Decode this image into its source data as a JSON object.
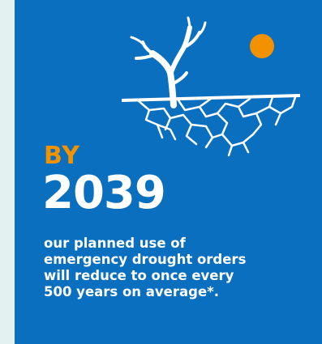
{
  "infographic": {
    "label": "BY",
    "year": "2039",
    "statement_lines": [
      "our planned use of",
      "emergency drought orders",
      "will reduce to once every",
      "500 years on average*."
    ],
    "icons": [
      "dead-tree-icon",
      "sun-icon",
      "cracked-earth-icon"
    ],
    "colors": {
      "background": "#0a6fbf",
      "page": "#e3f2f1",
      "accent": "#f39200",
      "text": "#ffffff"
    }
  }
}
